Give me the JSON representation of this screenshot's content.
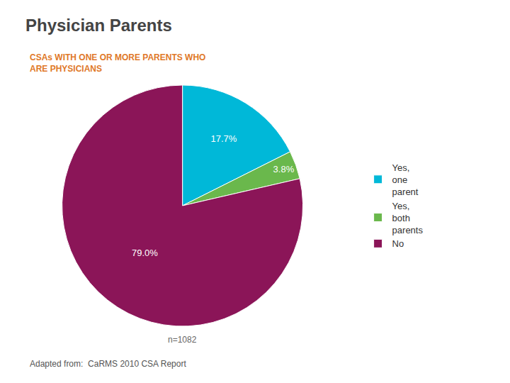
{
  "chart_data": {
    "type": "pie",
    "title": "Physician Parents",
    "subtitle": "CSAs WITH ONE OR MORE PARENTS WHO\nARE PHYSICIANS",
    "categories": [
      "Yes,\none\nparent",
      "Yes,\nboth\nparents",
      "No"
    ],
    "values": [
      17.7,
      3.8,
      79.0
    ],
    "value_labels": [
      "17.7%",
      "3.8%",
      "79.0%"
    ],
    "colors": [
      "#00b8d8",
      "#6ab84c",
      "#8b1558"
    ],
    "data_labels": true,
    "legend": "right",
    "annotations": [
      "n=1082",
      "Adapted from:  CaRMS 2010 CSA Report"
    ]
  }
}
